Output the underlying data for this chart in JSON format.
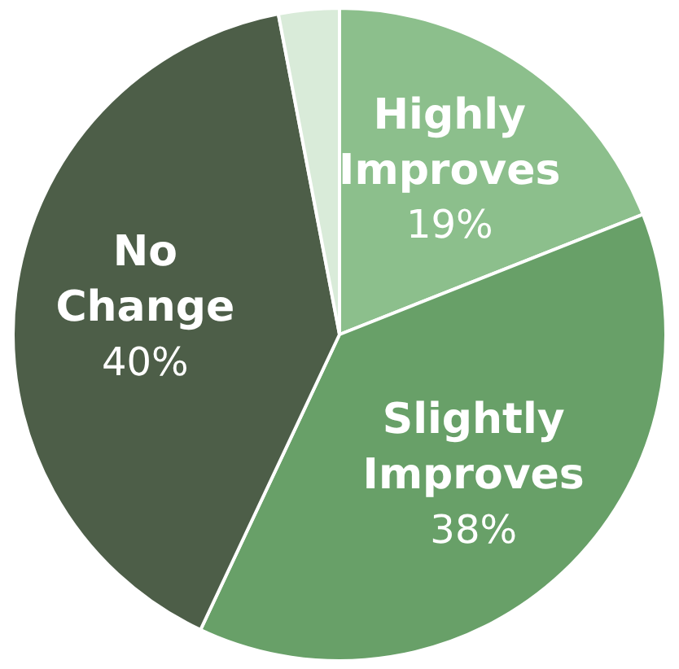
{
  "chart_data": {
    "type": "pie",
    "categories": [
      "Highly Improves",
      "Slightly Improves",
      "No Change",
      null
    ],
    "values": [
      19,
      38,
      40,
      3
    ],
    "colors": [
      "#8cbf8c",
      "#68a068",
      "#4d5e48",
      "#d9ebd9"
    ],
    "value_labels": [
      "19%",
      "38%",
      "40%",
      null
    ],
    "legend": false
  }
}
